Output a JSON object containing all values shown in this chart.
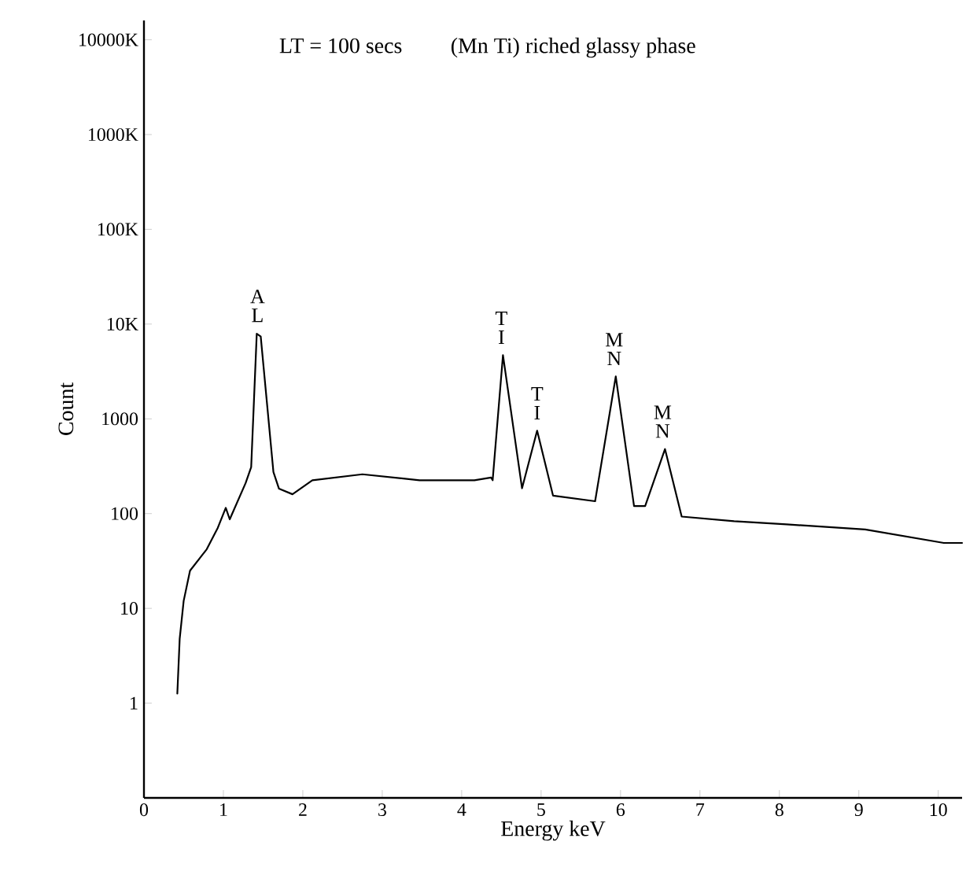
{
  "chart_data": {
    "type": "line",
    "title": "LT = 100 secs",
    "subtitle": "(Mn Ti) riched glassy phase",
    "xlabel": "Energy keV",
    "ylabel": "Count",
    "log": "y",
    "grid": false,
    "marker": "none",
    "line_style": "solid",
    "xlim": [
      0,
      10.3
    ],
    "ylim": [
      0.1,
      16000000
    ],
    "xticks": [
      0,
      1,
      2,
      3,
      4,
      5,
      6,
      7,
      8,
      9,
      10
    ],
    "yticks": [
      1,
      10,
      100,
      1000,
      {
        "value": 10000,
        "label": "10K"
      },
      {
        "value": 100000,
        "label": "100K"
      },
      {
        "value": 1000000,
        "label": "1000K"
      },
      {
        "value": 10000000,
        "label": "10000K"
      }
    ],
    "x": [
      0.42,
      0.45,
      0.5,
      0.58,
      0.79,
      0.93,
      1.03,
      1.08,
      1.28,
      1.35,
      1.42,
      1.47,
      1.63,
      1.7,
      1.87,
      2.12,
      2.75,
      3.47,
      4.16,
      4.37,
      4.39,
      4.52,
      4.76,
      4.95,
      5.15,
      5.68,
      5.94,
      6.17,
      6.31,
      6.56,
      6.77,
      7.43,
      8.09,
      9.08,
      10.07,
      10.3
    ],
    "series": [
      {
        "color": "#000000",
        "values": [
          1.26,
          4.8,
          12,
          25,
          42,
          71,
          115,
          87,
          210,
          310,
          7900,
          7400,
          275,
          183,
          160,
          225,
          260,
          225,
          225,
          240,
          225,
          4700,
          185,
          750,
          155,
          135,
          2800,
          120,
          120,
          480,
          93,
          83,
          77,
          68,
          49,
          49
        ]
      }
    ],
    "annotations": [
      {
        "text": "A L",
        "x": 1.43,
        "y": 8000
      },
      {
        "text": "T I",
        "x": 4.5,
        "y": 4700
      },
      {
        "text": "T I",
        "x": 4.95,
        "y": 750
      },
      {
        "text": "M N",
        "x": 5.92,
        "y": 2800
      },
      {
        "text": "M N",
        "x": 6.53,
        "y": 480
      }
    ]
  }
}
